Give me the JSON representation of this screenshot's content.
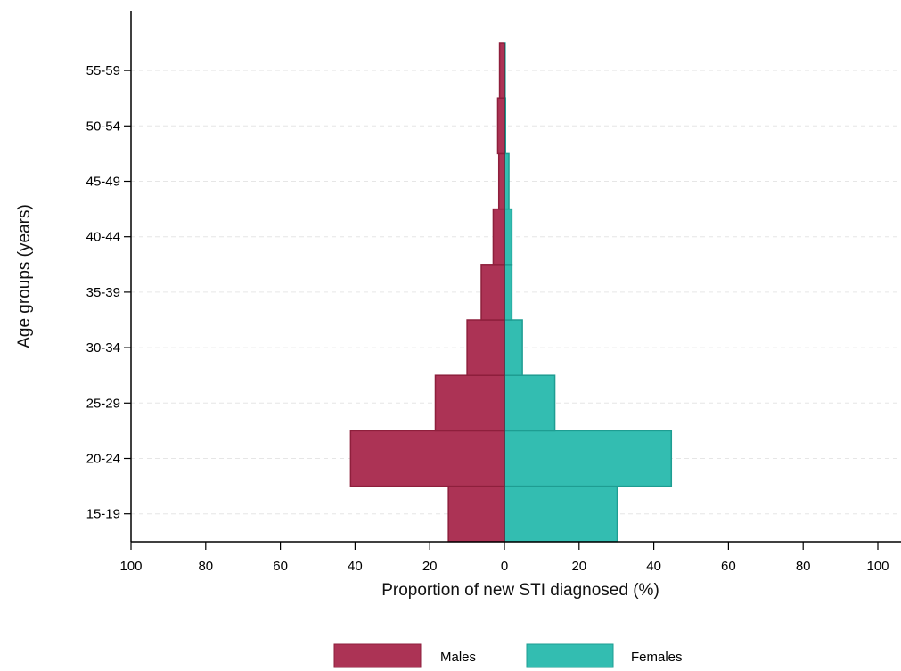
{
  "chart_data": {
    "type": "bar",
    "orientation": "horizontal",
    "subtype": "population-pyramid",
    "categories": [
      "15-19",
      "20-24",
      "25-29",
      "30-34",
      "35-39",
      "40-44",
      "45-49",
      "50-54",
      "55-59"
    ],
    "series": [
      {
        "name": "Males",
        "side": "left",
        "color": "#ac3355",
        "values": [
          15,
          41.2,
          18.5,
          10,
          6.2,
          3,
          1.5,
          1.8,
          1.3
        ]
      },
      {
        "name": "Females",
        "side": "right",
        "color": "#33bdb1",
        "values": [
          30.2,
          44.7,
          13.5,
          4.8,
          2,
          2,
          1.2,
          0.3,
          0.2
        ]
      }
    ],
    "title": "",
    "xlabel": "Proportion of new STI diagnosed (%)",
    "ylabel": "Age groups (years)",
    "xlim": [
      -100,
      100
    ],
    "xticks": [
      -100,
      -80,
      -60,
      -40,
      -20,
      0,
      20,
      40,
      60,
      80,
      100
    ],
    "xtick_labels": [
      "100",
      "80",
      "60",
      "40",
      "20",
      "0",
      "20",
      "40",
      "60",
      "80",
      "100"
    ],
    "grid": {
      "horizontal": true,
      "style": "dashed",
      "color": "#e6e6e6"
    },
    "legend": {
      "position": "bottom-center",
      "entries": [
        "Males",
        "Females"
      ]
    },
    "colors": {
      "males": "#ac3355",
      "females": "#33bdb1",
      "males_edge": "#8e1f3c",
      "females_edge": "#1e9d92"
    }
  }
}
